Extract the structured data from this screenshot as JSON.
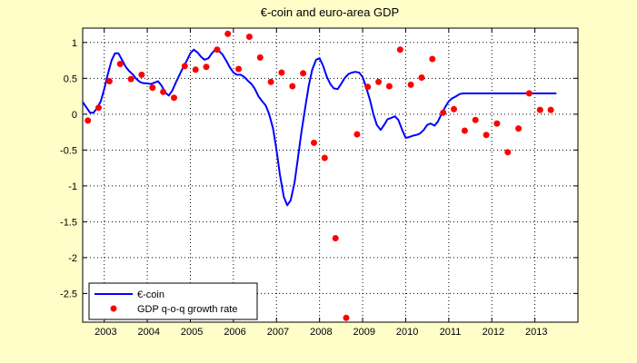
{
  "chart_data": {
    "type": "line",
    "title": "€-coin and euro-area GDP",
    "xlabel": "",
    "ylabel": "",
    "xlim": [
      2002.5,
      2014.0
    ],
    "ylim": [
      -2.9,
      1.2
    ],
    "x_ticks": [
      2003,
      2004,
      2005,
      2006,
      2007,
      2008,
      2009,
      2010,
      2011,
      2012,
      2013
    ],
    "x_tick_labels": [
      "2003",
      "2004",
      "2005",
      "2006",
      "2007",
      "2008",
      "2009",
      "2010",
      "2011",
      "2012",
      "2013"
    ],
    "y_ticks": [
      1,
      0.5,
      0,
      -0.5,
      -1,
      -1.5,
      -2,
      -2.5
    ],
    "y_tick_labels": [
      "1",
      "0.5",
      "0",
      "-0.5",
      "-1",
      "-1.5",
      "-2",
      "-2.5"
    ],
    "grid": true,
    "legend_position": "bottom-left",
    "colors": {
      "background": "#fffdc8",
      "plot_bg": "#ffffff",
      "line": "#0000ff",
      "marker": "#ff0000"
    },
    "series": [
      {
        "name": "€-coin",
        "kind": "line",
        "x": [
          2002.5,
          2002.58,
          2002.67,
          2002.75,
          2002.83,
          2002.92,
          2003.0,
          2003.08,
          2003.17,
          2003.25,
          2003.33,
          2003.42,
          2003.5,
          2003.58,
          2003.67,
          2003.75,
          2003.83,
          2003.92,
          2004.0,
          2004.08,
          2004.17,
          2004.25,
          2004.33,
          2004.42,
          2004.5,
          2004.58,
          2004.67,
          2004.75,
          2004.83,
          2004.92,
          2005.0,
          2005.08,
          2005.17,
          2005.25,
          2005.33,
          2005.42,
          2005.5,
          2005.58,
          2005.67,
          2005.75,
          2005.83,
          2005.92,
          2006.0,
          2006.08,
          2006.17,
          2006.25,
          2006.33,
          2006.42,
          2006.5,
          2006.58,
          2006.67,
          2006.75,
          2006.83,
          2006.92,
          2007.0,
          2007.08,
          2007.17,
          2007.25,
          2007.33,
          2007.42,
          2007.5,
          2007.58,
          2007.67,
          2007.75,
          2007.83,
          2007.92,
          2008.0,
          2008.08,
          2008.17,
          2008.25,
          2008.33,
          2008.42,
          2008.5,
          2008.58,
          2008.67,
          2008.75,
          2008.83,
          2008.92,
          2009.0,
          2009.08,
          2009.17,
          2009.25,
          2009.33,
          2009.42,
          2009.5,
          2009.58,
          2009.67,
          2009.75,
          2009.83,
          2009.92,
          2010.0,
          2010.08,
          2010.17,
          2010.25,
          2010.33,
          2010.42,
          2010.5,
          2010.58,
          2010.67,
          2010.75,
          2010.83,
          2010.92,
          2011.0,
          2011.08,
          2011.17,
          2011.25,
          2011.33,
          2011.42,
          2011.5,
          2011.58,
          2011.67,
          2011.75,
          2011.83,
          2011.92,
          2012.0,
          2012.08,
          2012.17,
          2012.25,
          2012.33,
          2012.42,
          2012.5,
          2012.58,
          2012.67,
          2012.75,
          2012.83,
          2012.92,
          2013.0,
          2013.08,
          2013.17,
          2013.25,
          2013.33,
          2013.42,
          2013.5
        ],
        "values": [
          0.17,
          0.1,
          0.02,
          0.02,
          0.08,
          0.18,
          0.35,
          0.55,
          0.75,
          0.85,
          0.85,
          0.75,
          0.66,
          0.6,
          0.55,
          0.49,
          0.45,
          0.43,
          0.43,
          0.42,
          0.44,
          0.46,
          0.4,
          0.3,
          0.26,
          0.33,
          0.45,
          0.55,
          0.65,
          0.75,
          0.85,
          0.9,
          0.86,
          0.8,
          0.76,
          0.78,
          0.85,
          0.9,
          0.88,
          0.83,
          0.75,
          0.65,
          0.58,
          0.55,
          0.55,
          0.52,
          0.47,
          0.42,
          0.35,
          0.25,
          0.18,
          0.12,
          0.0,
          -0.2,
          -0.5,
          -0.85,
          -1.15,
          -1.27,
          -1.2,
          -0.95,
          -0.6,
          -0.25,
          0.1,
          0.4,
          0.62,
          0.76,
          0.78,
          0.68,
          0.52,
          0.42,
          0.36,
          0.35,
          0.42,
          0.5,
          0.56,
          0.58,
          0.59,
          0.58,
          0.52,
          0.38,
          0.2,
          0.0,
          -0.15,
          -0.22,
          -0.15,
          -0.07,
          -0.05,
          -0.03,
          -0.08,
          -0.22,
          -0.33,
          -0.32,
          -0.3,
          -0.29,
          -0.27,
          -0.22,
          -0.15,
          -0.13,
          -0.16,
          -0.1,
          0.0,
          0.1,
          0.18,
          0.22,
          0.25,
          0.28,
          0.29,
          0.29,
          0.29,
          0.29,
          0.29,
          0.29,
          0.29,
          0.29,
          0.29,
          0.29,
          0.29,
          0.29,
          0.29,
          0.29,
          0.29,
          0.29,
          0.29,
          0.29,
          0.29,
          0.29,
          0.29,
          0.29,
          0.29,
          0.29,
          0.29,
          0.29,
          0.29
        ]
      },
      {
        "name": "GDP q-o-q growth rate",
        "kind": "scatter",
        "x": [
          2002.62,
          2002.87,
          2003.12,
          2003.37,
          2003.62,
          2003.87,
          2004.12,
          2004.37,
          2004.62,
          2004.87,
          2005.12,
          2005.37,
          2005.62,
          2005.87,
          2006.12,
          2006.37,
          2006.62,
          2006.87,
          2007.12,
          2007.37,
          2007.62,
          2007.87,
          2008.12,
          2008.37,
          2008.62,
          2008.87,
          2009.12,
          2009.37,
          2009.62,
          2009.87,
          2010.12,
          2010.37,
          2010.62,
          2010.87,
          2011.12,
          2011.37,
          2011.62,
          2011.87,
          2012.12,
          2012.37,
          2012.62,
          2012.87,
          2013.12,
          2013.37
        ],
        "values": [
          -0.09,
          0.09,
          0.46,
          0.7,
          0.49,
          0.55,
          0.37,
          0.31,
          0.23,
          0.67,
          0.62,
          0.66,
          0.9,
          1.12,
          0.63,
          1.08,
          0.79,
          0.45,
          0.58,
          0.39,
          0.57,
          -0.4,
          -0.61,
          -1.73,
          -2.84,
          -0.28,
          0.38,
          0.45,
          0.39,
          0.9,
          0.41,
          0.51,
          0.77,
          0.02,
          0.07,
          -0.23,
          -0.08,
          -0.29,
          -0.13,
          -0.53,
          -0.2,
          0.29,
          0.06,
          0.06
        ]
      }
    ]
  }
}
